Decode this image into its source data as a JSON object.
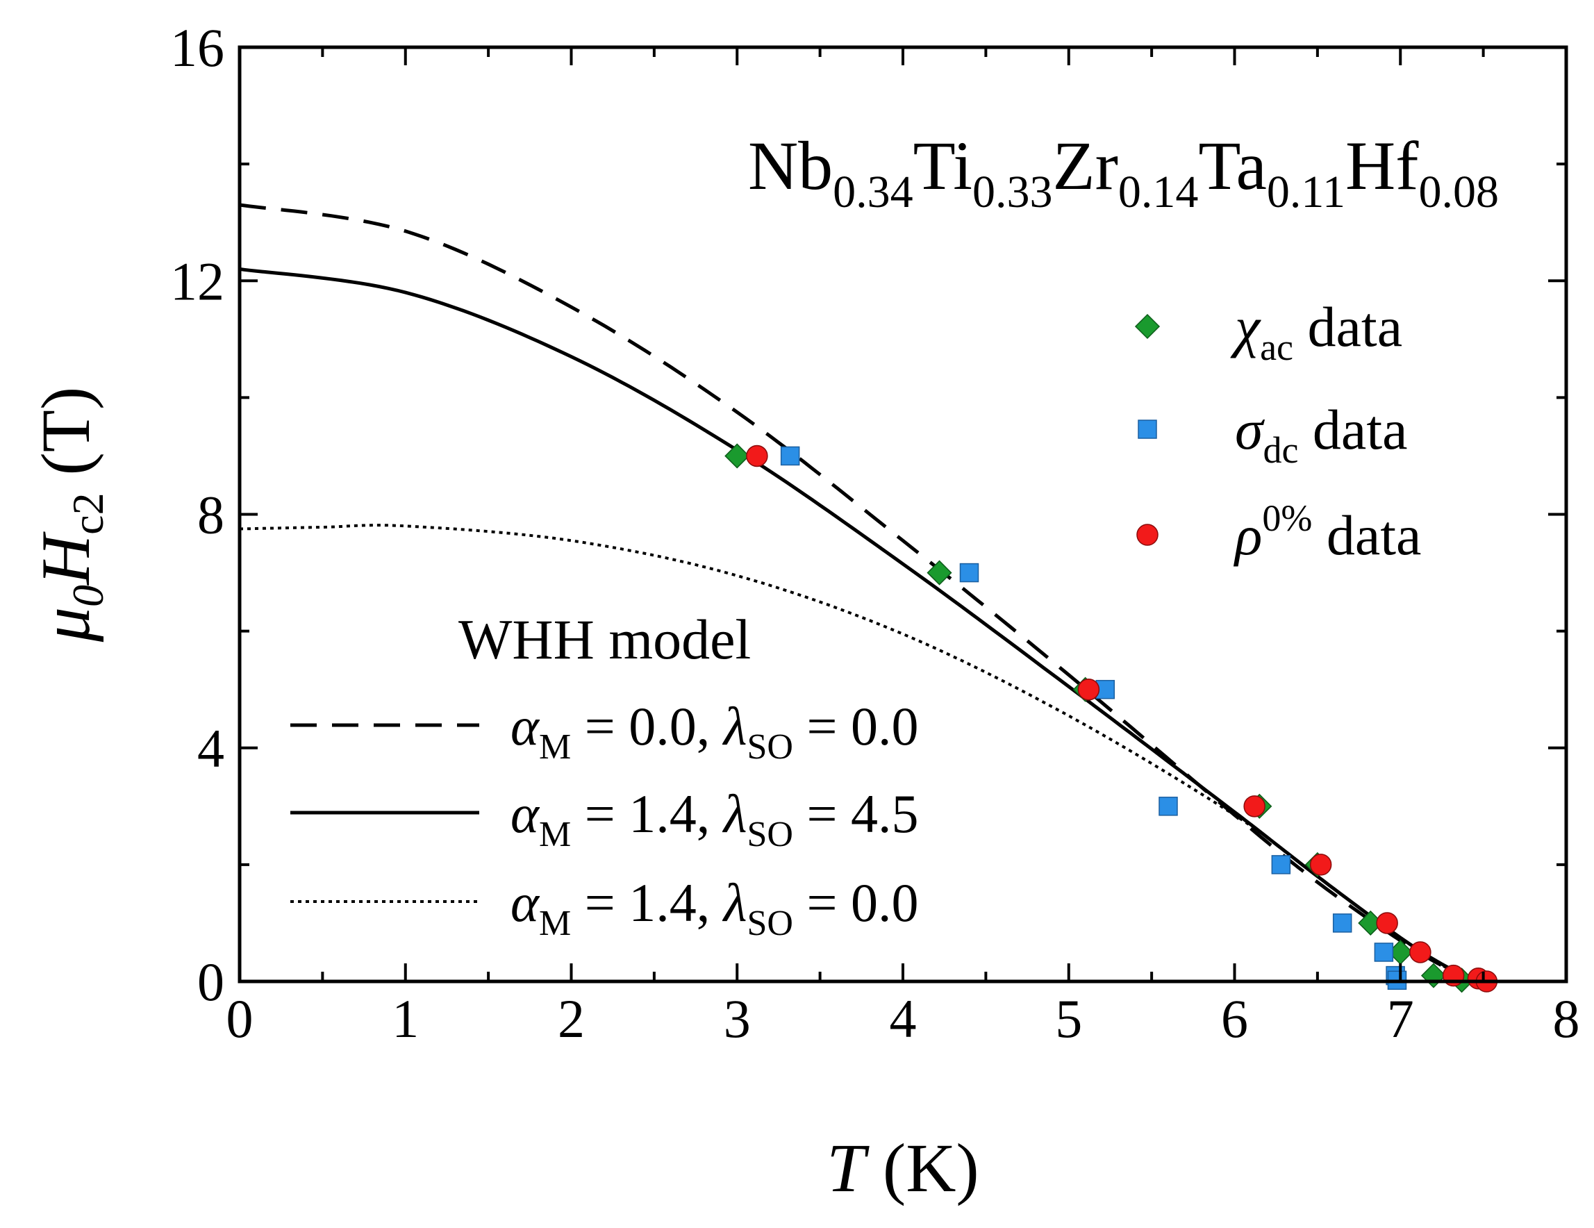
{
  "chart_data": {
    "type": "scatter",
    "title": "",
    "compound": {
      "parts": [
        {
          "el": "Nb",
          "sub": "0.34"
        },
        {
          "el": "Ti",
          "sub": "0.33"
        },
        {
          "el": "Zr",
          "sub": "0.14"
        },
        {
          "el": "Ta",
          "sub": "0.11"
        },
        {
          "el": "Hf",
          "sub": "0.08"
        }
      ]
    },
    "xlabel": {
      "symbol": "T",
      "unit": "(K)"
    },
    "ylabel": {
      "symbol": "μ",
      "sub0": "0",
      "symbol2": "H",
      "sub": "c2",
      "unit": "(T)"
    },
    "xlim": [
      0,
      8
    ],
    "ylim": [
      0,
      16
    ],
    "xticks": [
      "0",
      "1",
      "2",
      "3",
      "4",
      "5",
      "6",
      "7",
      "8"
    ],
    "yticks": [
      "0",
      "4",
      "8",
      "12",
      "16"
    ],
    "legend_position": "top-right",
    "model_legend_position": "bottom-left",
    "model_legend_title": "WHH model",
    "series": [
      {
        "name": "χac data",
        "legend": {
          "symbol": "χ",
          "sub": "ac",
          "sup": "",
          "text": "data"
        },
        "marker": "diamond",
        "color": "#1a9a2e",
        "points": [
          [
            3.0,
            9.0
          ],
          [
            4.22,
            7.0
          ],
          [
            5.1,
            5.0
          ],
          [
            6.15,
            3.0
          ],
          [
            6.5,
            2.0
          ],
          [
            6.82,
            1.0
          ],
          [
            7.0,
            0.5
          ],
          [
            7.2,
            0.1
          ],
          [
            7.37,
            0.02
          ]
        ]
      },
      {
        "name": "σdc data",
        "legend": {
          "symbol": "σ",
          "sub": "dc",
          "sup": "",
          "text": "data"
        },
        "marker": "square",
        "color": "#2b8fe6",
        "points": [
          [
            3.32,
            9.0
          ],
          [
            4.4,
            7.0
          ],
          [
            5.22,
            5.0
          ],
          [
            5.6,
            3.0
          ],
          [
            6.28,
            2.0
          ],
          [
            6.65,
            1.0
          ],
          [
            6.9,
            0.5
          ],
          [
            6.97,
            0.1
          ],
          [
            6.98,
            0.02
          ]
        ]
      },
      {
        "name": "ρ0% data",
        "legend": {
          "symbol": "ρ",
          "sub": "",
          "sup": "0%",
          "text": "data"
        },
        "marker": "circle",
        "color": "#f21a1a",
        "points": [
          [
            3.12,
            9.0
          ],
          [
            5.12,
            5.0
          ],
          [
            6.12,
            3.0
          ],
          [
            6.52,
            2.0
          ],
          [
            6.92,
            1.0
          ],
          [
            7.12,
            0.5
          ],
          [
            7.32,
            0.1
          ],
          [
            7.47,
            0.05
          ],
          [
            7.52,
            0.0
          ]
        ]
      }
    ],
    "model_lines": [
      {
        "style": "dashed",
        "legend": {
          "alpha_sub": "M",
          "alpha_val": "0.0",
          "lambda_sub": "SO",
          "lambda_val": "0.0"
        },
        "points": [
          [
            0,
            13.3
          ],
          [
            1,
            12.85
          ],
          [
            2,
            11.55
          ],
          [
            3,
            9.75
          ],
          [
            4,
            7.55
          ],
          [
            5,
            5.25
          ],
          [
            6,
            2.85
          ],
          [
            6.5,
            1.7
          ],
          [
            7.0,
            0.7
          ],
          [
            7.3,
            0.2
          ],
          [
            7.5,
            0.0
          ]
        ]
      },
      {
        "style": "solid",
        "legend": {
          "alpha_sub": "M",
          "alpha_val": "1.4",
          "lambda_sub": "SO",
          "lambda_val": "4.5"
        },
        "points": [
          [
            0,
            12.2
          ],
          [
            1,
            11.8
          ],
          [
            2,
            10.7
          ],
          [
            3,
            9.1
          ],
          [
            4,
            7.15
          ],
          [
            5,
            5.05
          ],
          [
            6,
            2.9
          ],
          [
            6.5,
            1.8
          ],
          [
            7.0,
            0.75
          ],
          [
            7.3,
            0.22
          ],
          [
            7.5,
            0.0
          ]
        ]
      },
      {
        "style": "dotted",
        "legend": {
          "alpha_sub": "M",
          "alpha_val": "1.4",
          "lambda_sub": "SO",
          "lambda_val": "0.0"
        },
        "points": [
          [
            0,
            7.75
          ],
          [
            0.5,
            7.78
          ],
          [
            1,
            7.8
          ],
          [
            2,
            7.55
          ],
          [
            3,
            6.95
          ],
          [
            4,
            5.95
          ],
          [
            5,
            4.55
          ],
          [
            6,
            2.85
          ],
          [
            6.5,
            1.8
          ],
          [
            7.0,
            0.75
          ],
          [
            7.3,
            0.2
          ],
          [
            7.5,
            0.0
          ]
        ]
      }
    ]
  }
}
